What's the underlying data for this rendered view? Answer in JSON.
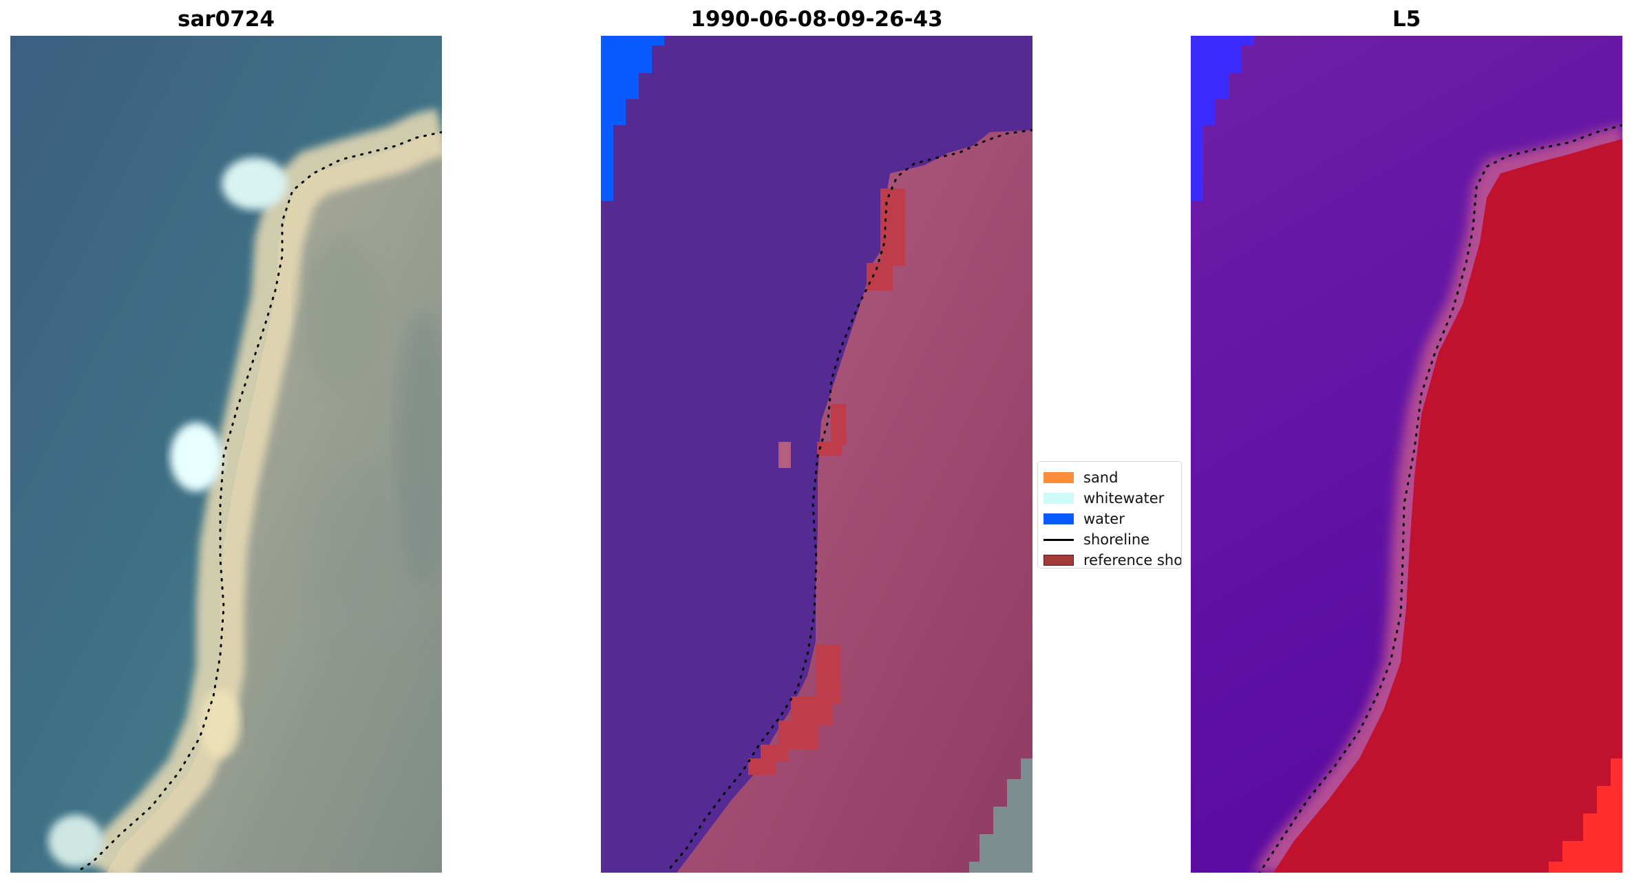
{
  "panels": [
    {
      "title": "sar0724"
    },
    {
      "title": "1990-06-08-09-26-43"
    },
    {
      "title": "L5"
    }
  ],
  "legend": {
    "items": [
      {
        "label": "sand",
        "color": "#fc8d3a",
        "kind": "patch"
      },
      {
        "label": "whitewater",
        "color": "#ccfbf8",
        "kind": "patch"
      },
      {
        "label": "water",
        "color": "#0a5bff",
        "kind": "patch"
      },
      {
        "label": "shoreline",
        "color": "#000000",
        "kind": "line"
      },
      {
        "label": "reference shoreline",
        "color": "#a33a3a",
        "kind": "patch"
      }
    ]
  },
  "colors": {
    "rgb_water": "#3f6f88",
    "rgb_beach": "#d9ccaa",
    "rgb_whitewater": "#d8f4f4",
    "class_water": "#552a92",
    "class_land": "#ad5474",
    "class_blue": "#0a5bff",
    "class_reference": "#bf3d4a",
    "prob_water": "#6a16a8",
    "prob_land": "#c0122e",
    "prob_blue": "#3b2bff",
    "shoreline": "#000000"
  }
}
